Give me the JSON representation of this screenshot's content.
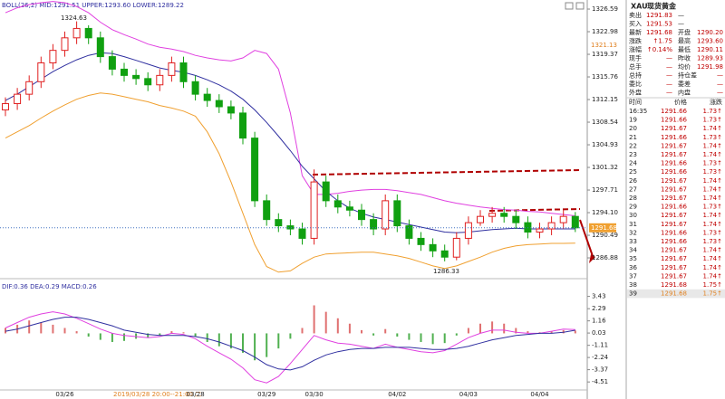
{
  "chart_data": [
    {
      "type": "candlestick",
      "title": "BOLL(26,2)  MID:1291.51  UPPER:1293.60  LOWER:1289.22",
      "categories": [
        null,
        null,
        null,
        null,
        null,
        "03/26",
        null,
        null,
        null,
        null,
        null,
        null,
        null,
        null,
        null,
        null,
        "03/28",
        null,
        null,
        null,
        null,
        null,
        "03/29",
        null,
        null,
        null,
        "03/30",
        null,
        null,
        null,
        null,
        null,
        null,
        "04/02",
        null,
        null,
        null,
        null,
        null,
        "04/03",
        null,
        null,
        null,
        null,
        null,
        "04/04",
        null,
        null,
        null
      ],
      "x_note": "2019/03/28 20:00--21:00 二",
      "open": [
        1310.5,
        1311.5,
        1313,
        1315,
        1318,
        1320,
        1322,
        1323.5,
        1322,
        1319,
        1317,
        1316,
        1315.5,
        1314.5,
        1316,
        1318,
        1315,
        1313,
        1312,
        1311,
        1310,
        1306,
        1296,
        1293,
        1292,
        1291.5,
        1290,
        1299,
        1296,
        1295,
        1294.5,
        1293,
        1291.5,
        1296,
        1292,
        1290,
        1289,
        1288,
        1287,
        1290,
        1292.5,
        1293.5,
        1294,
        1293.5,
        1292.5,
        1291,
        1291.5,
        1292.5,
        1293.5
      ],
      "high": [
        1312.5,
        1314,
        1316,
        1319,
        1321,
        1323,
        1324.63,
        1324,
        1323,
        1320,
        1318,
        1317,
        1316.5,
        1317,
        1319,
        1319,
        1316,
        1314,
        1313,
        1312,
        1311,
        1307,
        1297,
        1294,
        1293,
        1292.5,
        1301,
        1300,
        1297,
        1296,
        1295.5,
        1294,
        1297,
        1297,
        1293,
        1291,
        1290,
        1289,
        1291,
        1293.5,
        1294.5,
        1295,
        1295,
        1294.5,
        1293.5,
        1292.5,
        1293.5,
        1294.5,
        1294.2
      ],
      "low": [
        1309.5,
        1310.5,
        1312,
        1314,
        1317,
        1319,
        1321,
        1321,
        1318,
        1316,
        1315,
        1314.5,
        1313.5,
        1313.5,
        1315,
        1314,
        1312,
        1311,
        1310,
        1309,
        1305,
        1295,
        1292,
        1291,
        1290.5,
        1289,
        1289,
        1295,
        1294,
        1293.5,
        1292,
        1290.5,
        1290.5,
        1291,
        1289,
        1288,
        1287,
        1286.33,
        1286.5,
        1289,
        1292,
        1292.5,
        1292.5,
        1291.5,
        1290,
        1290,
        1290.5,
        1291.5,
        1291
      ],
      "close": [
        1311.5,
        1313,
        1315,
        1318,
        1320,
        1322,
        1323.5,
        1322,
        1319,
        1317,
        1316,
        1315.5,
        1314.5,
        1316,
        1318,
        1315,
        1313,
        1312,
        1311,
        1310,
        1306,
        1296,
        1293,
        1292,
        1291.5,
        1290,
        1299,
        1296,
        1295,
        1294.5,
        1293,
        1291.5,
        1296,
        1292,
        1290,
        1289,
        1288,
        1287,
        1290,
        1292.5,
        1293.5,
        1294,
        1293.5,
        1292.5,
        1291,
        1291.5,
        1292.5,
        1293.5,
        1291.68
      ],
      "up_color": "#e02020",
      "down_color": "#10a010",
      "series": [
        {
          "color": "#e040e0",
          "values": [
            1326,
            1326.8,
            1327.3,
            1327.6,
            1327.8,
            1327.6,
            1327,
            1326,
            1324.5,
            1323.3,
            1322.5,
            1321.8,
            1321,
            1320.5,
            1320.2,
            1319.8,
            1319.2,
            1318.8,
            1318.5,
            1318.3,
            1318.8,
            1320,
            1319.5,
            1317,
            1310,
            1300,
            1297,
            1297,
            1297.2,
            1297.5,
            1297.7,
            1297.8,
            1297.8,
            1297.6,
            1297.3,
            1297,
            1296.5,
            1296,
            1295.6,
            1295.3,
            1295,
            1294.8,
            1294.6,
            1294.5,
            1294.3,
            1294.2,
            1294,
            1293.8,
            1293.6
          ]
        },
        {
          "color": "#3030a0",
          "values": [
            1312,
            1313,
            1314.2,
            1315.4,
            1316.6,
            1317.6,
            1318.5,
            1319.2,
            1319.6,
            1319.5,
            1319,
            1318.4,
            1317.8,
            1317.2,
            1316.8,
            1316.5,
            1316,
            1315.3,
            1314.5,
            1313.5,
            1312.2,
            1310.5,
            1308.5,
            1306.3,
            1304,
            1301.5,
            1299.5,
            1297.5,
            1296,
            1294.8,
            1294,
            1293.4,
            1293,
            1292.6,
            1292.2,
            1291.8,
            1291.4,
            1291,
            1290.9,
            1291,
            1291.2,
            1291.4,
            1291.5,
            1291.6,
            1291.5,
            1291.5,
            1291.5,
            1291.5,
            1291.51
          ]
        },
        {
          "color": "#f0a030",
          "values": [
            1306,
            1307,
            1308,
            1309.2,
            1310.3,
            1311.3,
            1312.2,
            1312.8,
            1313.2,
            1313,
            1312.6,
            1312.2,
            1311.8,
            1311.2,
            1310.8,
            1310.3,
            1309.5,
            1307,
            1303.5,
            1299,
            1294,
            1289,
            1285.5,
            1284.6,
            1284.8,
            1286,
            1287,
            1287.5,
            1287.6,
            1287.7,
            1287.8,
            1287.8,
            1287.5,
            1287.2,
            1286.8,
            1286.2,
            1285.6,
            1285.2,
            1285.6,
            1286.3,
            1287,
            1287.8,
            1288.4,
            1288.8,
            1289,
            1289.1,
            1289.2,
            1289.2,
            1289.22
          ]
        }
      ],
      "ylim": [
        1284.43,
        1327.46
      ],
      "yticks": [
        1326.59,
        1322.98,
        1319.37,
        1315.76,
        1312.15,
        1308.54,
        1304.93,
        1301.32,
        1297.71,
        {
          "value": 1294.1,
          "label": "1294.10"
        },
        1290.49,
        1286.88
      ],
      "high_label": "1324.63",
      "low_label": "1286.33",
      "band_label": "1321.13",
      "last_label": "1291.68"
    },
    {
      "type": "macd",
      "title": "DIF:0.36  DEA:0.29  MACD:0.26",
      "histogram": [
        0.5,
        0.8,
        1.2,
        1.0,
        0.8,
        0.5,
        0.2,
        -0.3,
        -0.6,
        -0.8,
        -0.7,
        -0.5,
        -0.4,
        -0.2,
        0.2,
        0.1,
        -0.3,
        -0.8,
        -1.2,
        -1.4,
        -1.8,
        -2.5,
        -2.2,
        -1.4,
        -0.5,
        0.5,
        2.6,
        2.0,
        1.4,
        0.9,
        0.3,
        -0.2,
        0.4,
        -0.3,
        -0.6,
        -0.8,
        -1.0,
        -0.9,
        -0.2,
        0.5,
        0.9,
        1.1,
        0.9,
        0.5,
        0.2,
        0.1,
        0.2,
        0.3,
        0.26
      ],
      "series": [
        {
          "color": "#e040e0",
          "values": [
            0.5,
            1.0,
            1.5,
            1.8,
            2.0,
            1.8,
            1.4,
            0.9,
            0.4,
            0.0,
            -0.2,
            -0.3,
            -0.4,
            -0.3,
            0.0,
            -0.1,
            -0.5,
            -1.2,
            -1.8,
            -2.4,
            -3.2,
            -4.3,
            -4.6,
            -4.0,
            -2.8,
            -1.5,
            -0.2,
            -0.6,
            -0.9,
            -1.0,
            -1.2,
            -1.4,
            -1.0,
            -1.3,
            -1.5,
            -1.7,
            -1.8,
            -1.6,
            -1.0,
            -0.4,
            0.0,
            0.3,
            0.3,
            0.1,
            0.0,
            0.0,
            0.2,
            0.4,
            0.36
          ]
        },
        {
          "color": "#3030a0",
          "values": [
            0.2,
            0.4,
            0.7,
            1.0,
            1.3,
            1.5,
            1.5,
            1.3,
            1.0,
            0.7,
            0.3,
            0.1,
            -0.1,
            -0.2,
            -0.2,
            -0.2,
            -0.3,
            -0.5,
            -0.8,
            -1.2,
            -1.6,
            -2.2,
            -2.9,
            -3.3,
            -3.4,
            -3.1,
            -2.5,
            -2.0,
            -1.7,
            -1.5,
            -1.4,
            -1.4,
            -1.3,
            -1.3,
            -1.3,
            -1.4,
            -1.5,
            -1.5,
            -1.4,
            -1.2,
            -0.9,
            -0.6,
            -0.4,
            -0.2,
            -0.1,
            0.0,
            0.0,
            0.1,
            0.29
          ]
        }
      ],
      "up_color": "#e07070",
      "down_color": "#50b050",
      "ylim": [
        -5.0,
        3.9
      ],
      "yticks": [
        3.43,
        2.29,
        1.16,
        0.03,
        -1.11,
        -2.24,
        -3.37,
        -4.51
      ]
    }
  ],
  "quote": {
    "symbol": "XAU",
    "name": "现货黄金",
    "rows": [
      [
        "卖出",
        "1291.83",
        "—"
      ],
      [
        "买入",
        "1291.53",
        "—"
      ],
      [
        "最新",
        "1291.68",
        "开盘",
        "1290.20"
      ],
      [
        "涨跌",
        "↑1.75",
        "最高",
        "1293.60"
      ],
      [
        "涨幅",
        "↑0.14%",
        "最低",
        "1290.11"
      ],
      [
        "现手",
        "—",
        "昨收",
        "1289.93"
      ],
      [
        "总手",
        "—",
        "均价",
        "1291.98"
      ],
      [
        "总持",
        "—",
        "持仓差",
        "—"
      ],
      [
        "委比",
        "—",
        "委差",
        "—"
      ],
      [
        "外盘",
        "—",
        "内盘",
        "—"
      ]
    ]
  },
  "ticks": {
    "columns": [
      "时间",
      "价格",
      "涨跌"
    ],
    "rows": [
      [
        "16:35",
        "1291.66",
        "1.73↑"
      ],
      [
        "19",
        "1291.66",
        "1.73↑"
      ],
      [
        "20",
        "1291.67",
        "1.74↑"
      ],
      [
        "21",
        "1291.66",
        "1.73↑"
      ],
      [
        "22",
        "1291.67",
        "1.74↑"
      ],
      [
        "23",
        "1291.67",
        "1.74↑"
      ],
      [
        "24",
        "1291.66",
        "1.73↑"
      ],
      [
        "25",
        "1291.66",
        "1.73↑"
      ],
      [
        "26",
        "1291.67",
        "1.74↑"
      ],
      [
        "27",
        "1291.67",
        "1.74↑"
      ],
      [
        "28",
        "1291.67",
        "1.74↑"
      ],
      [
        "29",
        "1291.66",
        "1.73↑"
      ],
      [
        "30",
        "1291.67",
        "1.74↑"
      ],
      [
        "31",
        "1291.67",
        "1.74↑"
      ],
      [
        "32",
        "1291.66",
        "1.73↑"
      ],
      [
        "33",
        "1291.66",
        "1.73↑"
      ],
      [
        "34",
        "1291.67",
        "1.74↑"
      ],
      [
        "35",
        "1291.67",
        "1.74↑"
      ],
      [
        "36",
        "1291.67",
        "1.74↑"
      ],
      [
        "37",
        "1291.67",
        "1.74↑"
      ],
      [
        "38",
        "1291.68",
        "1.75↑"
      ],
      [
        "39",
        "1291.68",
        "1.75↑"
      ]
    ]
  }
}
